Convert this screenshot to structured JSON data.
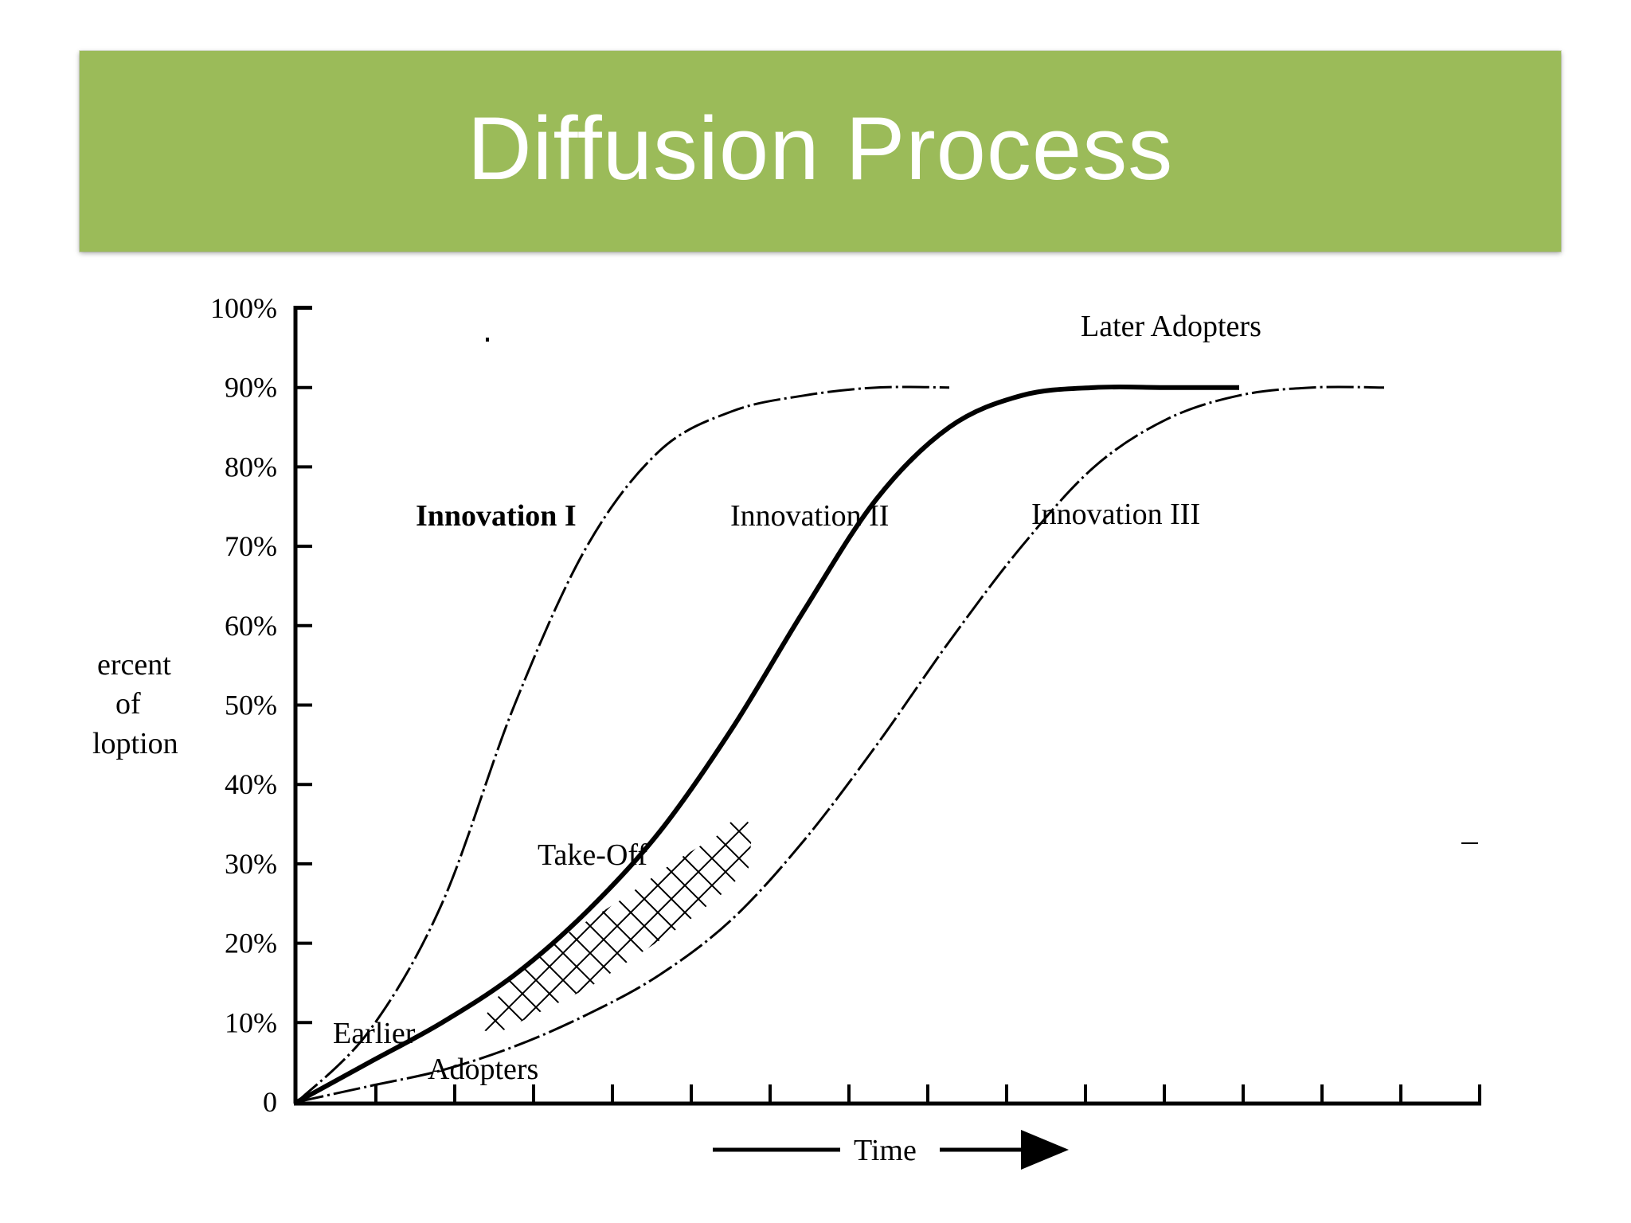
{
  "title": "Diffusion Process",
  "colors": {
    "banner": "#9bbb59",
    "title_text": "#ffffff",
    "ink": "#000000"
  },
  "chart_data": {
    "type": "line",
    "ylabel_lines": [
      "ercent",
      "of",
      "loption"
    ],
    "xlabel": "Time",
    "y_tick_labels": [
      "0",
      "10%",
      "20%",
      "30%",
      "40%",
      "50%",
      "60%",
      "70%",
      "80%",
      "90%",
      "100%"
    ],
    "ylim": [
      0,
      100
    ],
    "x_tick_count": 15,
    "grid": false,
    "series": [
      {
        "name": "Innovation I",
        "style": "dashed",
        "x": [
          0,
          1,
          2,
          3,
          4,
          5,
          6,
          7,
          8,
          9
        ],
        "y": [
          0,
          9,
          25,
          50,
          70,
          82,
          87,
          89,
          90,
          90
        ]
      },
      {
        "name": "Innovation II",
        "style": "solid",
        "x": [
          0,
          1,
          2,
          3,
          4,
          5,
          6,
          7,
          8,
          9,
          10,
          11,
          12,
          13
        ],
        "y": [
          0,
          5,
          10,
          16,
          24,
          34,
          47,
          62,
          76,
          85,
          89,
          90,
          90,
          90
        ]
      },
      {
        "name": "Innovation III",
        "style": "dashed",
        "x": [
          0,
          1,
          2,
          3,
          4,
          5,
          6,
          7,
          8,
          9,
          10,
          11,
          12,
          13,
          14,
          15
        ],
        "y": [
          0,
          2,
          4,
          7,
          11,
          16,
          23,
          33,
          45,
          58,
          70,
          80,
          86,
          89,
          90,
          90
        ]
      }
    ],
    "annotations": [
      "Later Adopters",
      "Take-Off",
      "Earlier",
      "Adopters"
    ]
  }
}
